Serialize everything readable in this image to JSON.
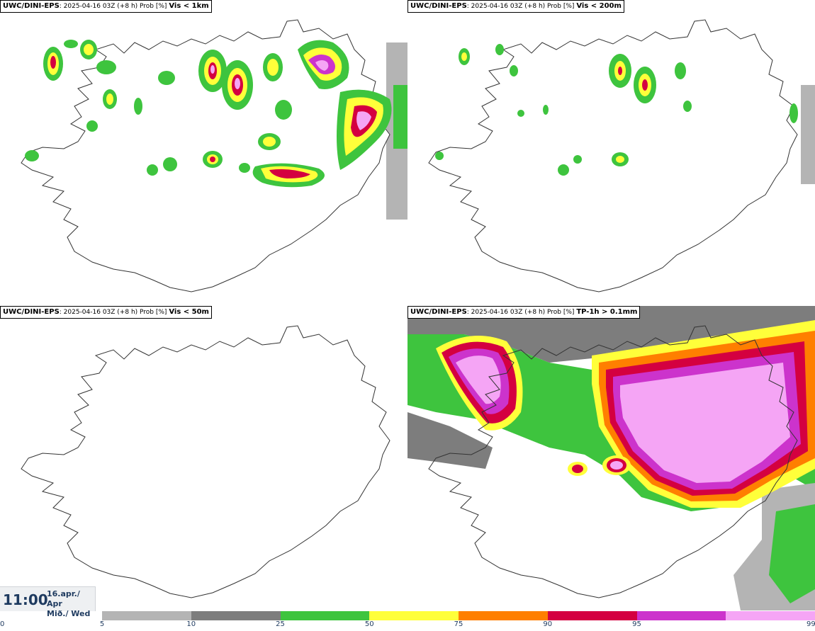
{
  "panels": [
    {
      "model": "UWC/DINI-EPS",
      "info": ": 2025-04-16 03Z (+8 h) Prob [%]",
      "param": "Vis < 1km"
    },
    {
      "model": "UWC/DINI-EPS",
      "info": ": 2025-04-16 03Z (+8 h) Prob [%]",
      "param": "Vis < 200m"
    },
    {
      "model": "UWC/DINI-EPS",
      "info": ": 2025-04-16 03Z (+8 h) Prob [%]",
      "param": "Vis < 50m"
    },
    {
      "model": "UWC/DINI-EPS",
      "info": ": 2025-04-16 03Z (+8 h) Prob [%]",
      "param": "TP-1h > 0.1mm"
    }
  ],
  "valid_time": {
    "hour": "11:00",
    "date_line1": "16.apr./ Apr",
    "date_line2": "Mið./ Wed"
  },
  "colorbar": {
    "ticks": [
      "0",
      "5",
      "10",
      "25",
      "50",
      "75",
      "90",
      "95",
      "99"
    ],
    "colors": [
      "#ffffff",
      "#b4b4b4",
      "#7d7d7d",
      "#3ec43e",
      "#ffff3a",
      "#ff7f00",
      "#d40040",
      "#cc33cc",
      "#f5a5f5"
    ]
  },
  "legend_colors": {
    "p5": "#b4b4b4",
    "p10": "#7d7d7d",
    "p25": "#3ec43e",
    "p50": "#ffff3a",
    "p75": "#ff7f00",
    "p90": "#d40040",
    "p95": "#cc33cc",
    "p99": "#f5a5f5"
  }
}
